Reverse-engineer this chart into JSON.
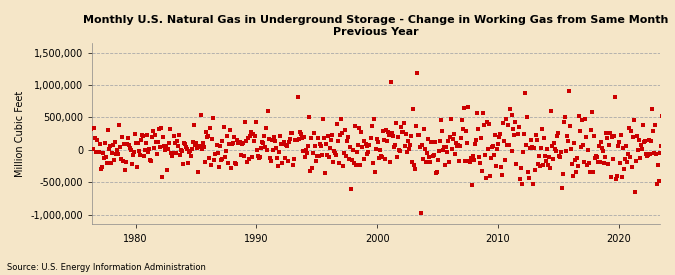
{
  "title": "Monthly U.S. Natural Gas in Underground Storage - Change in Working Gas from Same Month\nPrevious Year",
  "ylabel": "Million Cubic Feet",
  "source": "Source: U.S. Energy Information Administration",
  "background_color": "#f5e6c8",
  "plot_bg_color": "#f5e6c8",
  "dot_color": "#cc0000",
  "grid_color": "#aaaaaa",
  "ylim": [
    -1150000,
    1650000
  ],
  "yticks": [
    -1000000,
    -500000,
    0,
    500000,
    1000000,
    1500000
  ],
  "ytick_labels": [
    "-1,000,000",
    "-500,000",
    "0",
    "500,000",
    "1,000,000",
    "1,500,000"
  ],
  "xticks": [
    1980,
    1990,
    2000,
    2010,
    2020
  ],
  "start_year": 1976,
  "end_year": 2024,
  "seed": 42
}
